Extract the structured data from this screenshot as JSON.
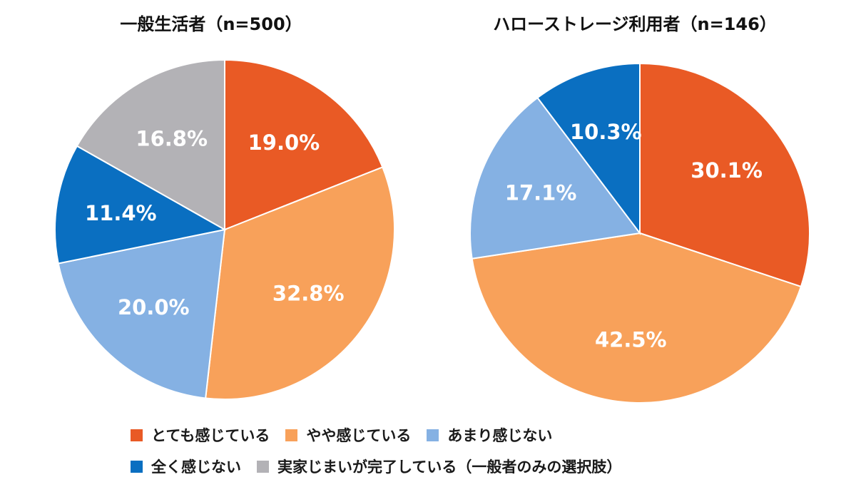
{
  "colors": {
    "totemo": "#e95a25",
    "yaya": "#f8a15a",
    "amari": "#85b1e3",
    "mattaku": "#0a6fc1",
    "kanryo": "#b3b2b6"
  },
  "legend": {
    "row1": [
      {
        "label": "とても感じている",
        "color": "#e95a25"
      },
      {
        "label": "やや感じている",
        "color": "#f8a15a"
      },
      {
        "label": "あまり感じない",
        "color": "#85b1e3"
      }
    ],
    "row2": [
      {
        "label": "全く感じない",
        "color": "#0a6fc1"
      },
      {
        "label": "実家じまいが完了している（一般者のみの選択肢）",
        "color": "#b3b2b6"
      }
    ]
  },
  "chart_data": [
    {
      "type": "pie",
      "title": "一般生活者（n=500）",
      "slices": [
        {
          "name": "とても感じている",
          "value": 19.0,
          "label": "19.0%",
          "color": "#e95a25"
        },
        {
          "name": "やや感じている",
          "value": 32.8,
          "label": "32.8%",
          "color": "#f8a15a"
        },
        {
          "name": "あまり感じない",
          "value": 20.0,
          "label": "20.0%",
          "color": "#85b1e3"
        },
        {
          "name": "全く感じない",
          "value": 11.4,
          "label": "11.4%",
          "color": "#0a6fc1"
        },
        {
          "name": "実家じまいが完了している（一般者のみの選択肢）",
          "value": 16.8,
          "label": "16.8%",
          "color": "#b3b2b6"
        }
      ],
      "legend_position": "bottom"
    },
    {
      "type": "pie",
      "title": "ハローストレージ利用者（n=146）",
      "slices": [
        {
          "name": "とても感じている",
          "value": 30.1,
          "label": "30.1%",
          "color": "#e95a25"
        },
        {
          "name": "やや感じている",
          "value": 42.5,
          "label": "42.5%",
          "color": "#f8a15a"
        },
        {
          "name": "あまり感じない",
          "value": 17.1,
          "label": "17.1%",
          "color": "#85b1e3"
        },
        {
          "name": "全く感じない",
          "value": 10.3,
          "label": "10.3%",
          "color": "#0a6fc1"
        }
      ],
      "legend_position": "bottom"
    }
  ]
}
